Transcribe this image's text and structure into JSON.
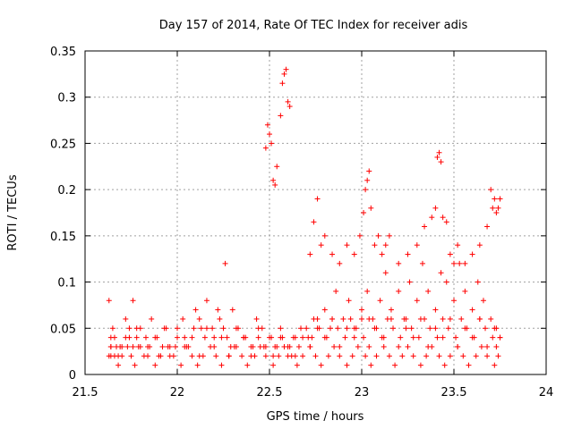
{
  "chart_data": {
    "type": "scatter",
    "title": "Day 157 of 2014, Rate Of TEC Index for receiver adis",
    "xlabel": "GPS time / hours",
    "ylabel": "ROTI / TECUs",
    "xlim": [
      21.5,
      24
    ],
    "ylim": [
      0,
      0.35
    ],
    "xticks": [
      21.5,
      22,
      22.5,
      23,
      23.5,
      24
    ],
    "xtick_labels": [
      "21.5",
      "22",
      "22.5",
      "23",
      "23.5",
      "24"
    ],
    "yticks": [
      0,
      0.05,
      0.1,
      0.15,
      0.2,
      0.25,
      0.3,
      0.35
    ],
    "ytick_labels": [
      "0",
      "0.05",
      "0.1",
      "0.15",
      "0.2",
      "0.25",
      "0.3",
      "0.35"
    ],
    "grid": true,
    "marker": "+",
    "color": "#ff0000",
    "series": [
      {
        "name": "ROTI",
        "x": [
          21.63,
          21.65,
          21.67,
          21.64,
          21.66,
          21.7,
          21.72,
          21.74,
          21.76,
          21.78,
          21.8,
          21.83,
          21.86,
          21.9,
          21.93,
          21.96,
          22.0,
          22.03,
          22.06,
          22.1,
          22.13,
          22.16,
          22.2,
          22.23,
          22.26,
          22.3,
          22.33,
          22.36,
          22.4,
          22.43,
          22.46,
          22.5,
          22.53,
          22.56,
          22.6,
          22.63,
          22.66,
          22.7,
          22.73,
          22.76,
          22.8,
          22.83,
          22.86,
          22.9,
          22.93,
          22.96,
          23.0,
          23.03,
          23.06,
          23.1,
          23.13,
          23.16,
          23.2,
          23.23,
          23.26,
          23.3,
          23.33,
          23.36,
          23.4,
          23.43,
          23.46,
          23.5,
          23.53,
          23.56,
          23.6,
          23.63,
          23.66,
          23.7,
          23.73,
          23.75,
          21.63,
          21.64,
          21.66,
          21.68,
          21.7,
          21.73,
          21.75,
          21.77,
          21.79,
          21.82,
          21.85,
          21.88,
          21.91,
          21.95,
          21.98,
          22.02,
          22.05,
          22.08,
          22.11,
          22.14,
          22.18,
          22.21,
          22.24,
          22.28,
          22.31,
          22.35,
          22.38,
          22.42,
          22.45,
          22.48,
          22.52,
          22.55,
          22.58,
          22.62,
          22.65,
          22.68,
          22.72,
          22.75,
          22.78,
          22.82,
          22.85,
          22.88,
          22.92,
          22.95,
          22.98,
          23.02,
          23.05,
          23.08,
          23.12,
          23.15,
          23.18,
          23.22,
          23.25,
          23.28,
          23.32,
          23.35,
          23.38,
          23.42,
          23.45,
          23.48,
          23.52,
          23.55,
          23.58,
          23.62,
          23.65,
          23.68,
          23.72,
          23.74,
          21.64,
          21.69,
          21.74,
          21.78,
          21.84,
          21.89,
          21.94,
          21.99,
          22.04,
          22.09,
          22.12,
          22.15,
          22.19,
          22.22,
          22.25,
          22.27,
          22.29,
          22.32,
          22.37,
          22.41,
          22.44,
          22.47,
          22.51,
          22.54,
          22.57,
          22.61,
          22.64,
          22.67,
          22.71,
          22.74,
          22.77,
          22.81,
          22.84,
          22.87,
          22.91,
          22.94,
          22.97,
          23.01,
          23.04,
          23.07,
          23.11,
          23.14,
          23.17,
          23.21,
          23.24,
          23.27,
          23.31,
          23.34,
          23.37,
          23.41,
          23.44,
          23.47,
          23.51,
          23.54,
          23.57,
          23.61,
          23.64,
          23.67,
          23.71,
          23.73,
          22.48,
          22.49,
          22.5,
          22.51,
          22.52,
          22.53,
          22.54,
          22.56,
          22.57,
          22.58,
          22.59,
          22.6,
          22.61,
          22.72,
          22.74,
          22.76,
          22.78,
          22.8,
          22.84,
          22.88,
          22.92,
          22.96,
          22.99,
          23.01,
          23.02,
          23.03,
          23.04,
          23.05,
          23.07,
          23.09,
          23.11,
          23.13,
          23.15,
          23.2,
          23.25,
          23.3,
          23.34,
          23.38,
          23.4,
          23.41,
          23.42,
          23.43,
          23.44,
          23.46,
          23.48,
          23.5,
          23.52,
          23.56,
          23.6,
          23.64,
          23.68,
          23.7,
          23.71,
          23.72,
          23.73,
          23.74,
          23.75,
          21.64,
          21.68,
          21.72,
          21.76,
          21.8,
          21.84,
          21.88,
          21.92,
          21.96,
          22.0,
          22.04,
          22.08,
          22.12,
          22.16,
          22.2,
          22.24,
          22.28,
          22.32,
          22.36,
          22.4,
          22.44,
          22.48,
          22.52,
          22.56,
          22.6,
          22.64,
          22.68,
          22.72,
          22.76,
          22.8,
          22.84,
          22.88,
          22.92,
          22.96,
          23.0,
          23.04,
          23.08,
          23.12,
          23.16,
          23.2,
          23.24,
          23.28,
          23.32,
          23.36,
          23.4,
          23.44,
          23.48,
          23.52,
          23.56,
          23.6,
          23.64,
          23.68,
          23.72,
          23.75
        ],
        "y": [
          0.08,
          0.05,
          0.03,
          0.02,
          0.04,
          0.03,
          0.06,
          0.04,
          0.08,
          0.05,
          0.03,
          0.04,
          0.06,
          0.02,
          0.05,
          0.03,
          0.04,
          0.06,
          0.03,
          0.07,
          0.05,
          0.08,
          0.04,
          0.06,
          0.12,
          0.07,
          0.05,
          0.04,
          0.03,
          0.06,
          0.05,
          0.04,
          0.03,
          0.05,
          0.02,
          0.04,
          0.03,
          0.05,
          0.04,
          0.06,
          0.07,
          0.05,
          0.09,
          0.06,
          0.08,
          0.05,
          0.07,
          0.09,
          0.06,
          0.08,
          0.11,
          0.07,
          0.09,
          0.06,
          0.1,
          0.08,
          0.12,
          0.09,
          0.07,
          0.11,
          0.1,
          0.08,
          0.12,
          0.09,
          0.07,
          0.1,
          0.08,
          0.06,
          0.05,
          0.04,
          0.02,
          0.03,
          0.02,
          0.01,
          0.02,
          0.03,
          0.02,
          0.01,
          0.03,
          0.02,
          0.03,
          0.01,
          0.02,
          0.03,
          0.02,
          0.01,
          0.03,
          0.02,
          0.01,
          0.02,
          0.03,
          0.02,
          0.01,
          0.02,
          0.03,
          0.02,
          0.01,
          0.02,
          0.03,
          0.02,
          0.01,
          0.02,
          0.03,
          0.02,
          0.01,
          0.02,
          0.03,
          0.02,
          0.01,
          0.02,
          0.03,
          0.02,
          0.01,
          0.02,
          0.03,
          0.02,
          0.01,
          0.02,
          0.03,
          0.02,
          0.01,
          0.02,
          0.03,
          0.02,
          0.01,
          0.02,
          0.03,
          0.02,
          0.01,
          0.02,
          0.03,
          0.02,
          0.01,
          0.02,
          0.03,
          0.02,
          0.01,
          0.02,
          0.04,
          0.03,
          0.05,
          0.04,
          0.03,
          0.04,
          0.05,
          0.03,
          0.04,
          0.05,
          0.06,
          0.04,
          0.05,
          0.07,
          0.05,
          0.04,
          0.03,
          0.05,
          0.04,
          0.03,
          0.04,
          0.03,
          0.04,
          0.03,
          0.04,
          0.03,
          0.04,
          0.05,
          0.04,
          0.06,
          0.05,
          0.04,
          0.06,
          0.05,
          0.04,
          0.06,
          0.05,
          0.04,
          0.06,
          0.05,
          0.04,
          0.06,
          0.05,
          0.04,
          0.06,
          0.05,
          0.04,
          0.06,
          0.05,
          0.04,
          0.06,
          0.05,
          0.04,
          0.06,
          0.05,
          0.04,
          0.06,
          0.05,
          0.04,
          0.03,
          0.245,
          0.27,
          0.26,
          0.25,
          0.21,
          0.205,
          0.225,
          0.28,
          0.315,
          0.325,
          0.33,
          0.295,
          0.29,
          0.13,
          0.165,
          0.19,
          0.14,
          0.15,
          0.13,
          0.12,
          0.14,
          0.13,
          0.15,
          0.175,
          0.2,
          0.21,
          0.22,
          0.18,
          0.14,
          0.15,
          0.13,
          0.14,
          0.15,
          0.12,
          0.13,
          0.14,
          0.16,
          0.17,
          0.18,
          0.235,
          0.24,
          0.23,
          0.17,
          0.165,
          0.13,
          0.12,
          0.14,
          0.12,
          0.13,
          0.14,
          0.16,
          0.2,
          0.18,
          0.19,
          0.175,
          0.18,
          0.19,
          0.03,
          0.02,
          0.04,
          0.03,
          0.05,
          0.02,
          0.04,
          0.03,
          0.02,
          0.05,
          0.03,
          0.04,
          0.02,
          0.05,
          0.03,
          0.04,
          0.02,
          0.03,
          0.04,
          0.02,
          0.05,
          0.03,
          0.02,
          0.04,
          0.03,
          0.02,
          0.04,
          0.03,
          0.05,
          0.04,
          0.06,
          0.03,
          0.05,
          0.04,
          0.06,
          0.03,
          0.05,
          0.04,
          0.06,
          0.03,
          0.05,
          0.04,
          0.06,
          0.03,
          0.05,
          0.04,
          0.06,
          0.03,
          0.05,
          0.04,
          0.06,
          0.03,
          0.05,
          0.04
        ]
      }
    ]
  }
}
